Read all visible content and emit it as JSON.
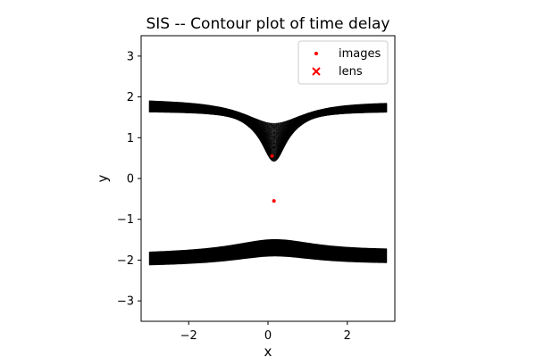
{
  "chart_data": {
    "type": "contour",
    "title": "SIS -- Contour plot of time delay",
    "xlabel": "x",
    "ylabel": "y",
    "xlim": [
      -3.2,
      3.2
    ],
    "ylim": [
      -3.5,
      3.5
    ],
    "xticks": [
      -2,
      0,
      2
    ],
    "yticks": [
      -3,
      -2,
      -1,
      0,
      1,
      2,
      3
    ],
    "grid": false,
    "legend_position": "upper right",
    "colors": {
      "contour": "#000000",
      "images": "#ff0000",
      "lens": "#ff0000"
    },
    "contour_bands": {
      "upper": {
        "outer_edge_y": [
          1.95,
          1.35,
          1.9
        ],
        "inner_edge_y": [
          1.65,
          0.42,
          1.65
        ],
        "x": [
          -3.0,
          0.15,
          3.0
        ]
      },
      "lower": {
        "upper_edge_y": [
          -1.85,
          -1.5,
          -1.78
        ],
        "lower_edge_y": [
          -2.15,
          -1.9,
          -2.1
        ],
        "x": [
          -3.0,
          0.15,
          3.0
        ]
      }
    },
    "series": [
      {
        "name": "images",
        "marker": "dot",
        "points": [
          [
            0.1,
            0.55
          ],
          [
            0.15,
            -0.55
          ]
        ]
      },
      {
        "name": "lens",
        "marker": "x",
        "points": []
      }
    ]
  }
}
